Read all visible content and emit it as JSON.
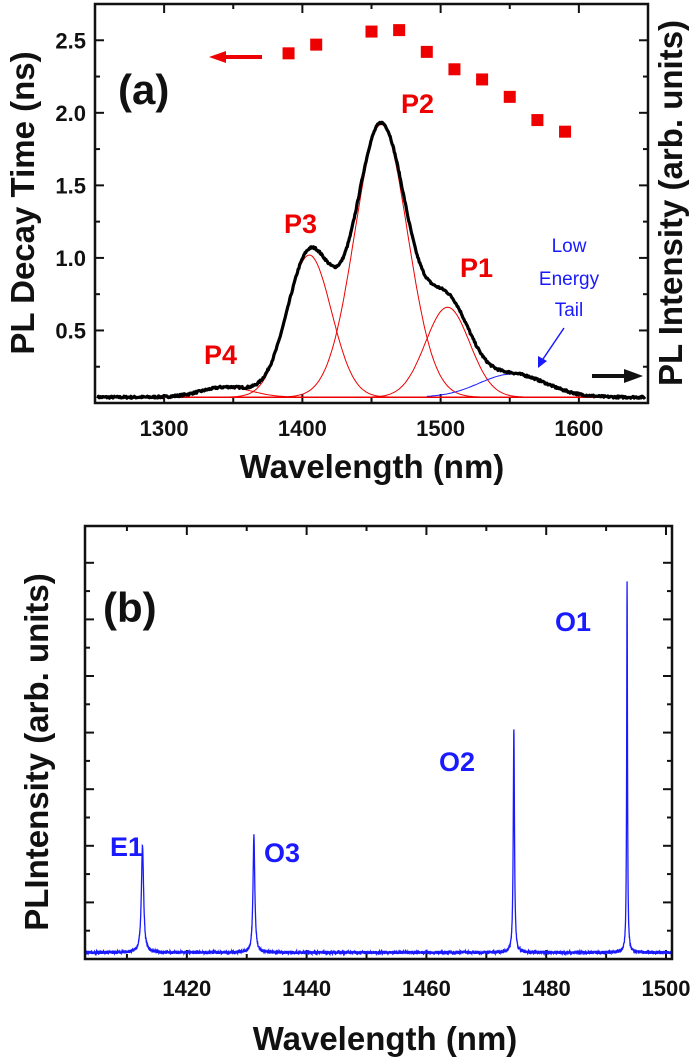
{
  "chart_data": [
    {
      "panel": "(a)",
      "type": "line",
      "xlabel": "Wavelength (nm)",
      "ylabel_left": "PL Decay Time (ns)",
      "ylabel_right": "PL Intensity (arb. units)",
      "xlim": [
        1250,
        1650
      ],
      "ylim": [
        0,
        2.75
      ],
      "xticks": [
        1300,
        1400,
        1500,
        1600
      ],
      "yticks": [
        "0.5",
        "1.0",
        "1.5",
        "2.0",
        "2.5"
      ],
      "grid": false,
      "colors": {
        "decay": "#ee0000",
        "spectrum": "#000000",
        "fit": "#ee0000",
        "tail": "#1a1aff"
      },
      "decay_time": {
        "type": "scatter",
        "x": [
          1390,
          1410,
          1450,
          1470,
          1490,
          1510,
          1530,
          1550,
          1570,
          1590
        ],
        "y": [
          2.41,
          2.47,
          2.56,
          2.57,
          2.42,
          2.3,
          2.23,
          2.11,
          1.95,
          1.87
        ]
      },
      "spectrum_baseline": 0.04,
      "fit_components": [
        {
          "label": "P4",
          "center": 1345,
          "amplitude": 0.07,
          "sigma": 18
        },
        {
          "label": "P3",
          "center": 1405,
          "amplitude": 0.98,
          "sigma": 16
        },
        {
          "label": "P2",
          "center": 1457,
          "amplitude": 1.88,
          "sigma": 19
        },
        {
          "label": "P1",
          "center": 1505,
          "amplitude": 0.62,
          "sigma": 16
        },
        {
          "label": "Low Energy Tail",
          "center": 1552,
          "amplitude": 0.16,
          "sigma": 24
        }
      ],
      "annotations": {
        "panel_label": "(a)",
        "p1": "P1",
        "p2": "P2",
        "p3": "P3",
        "p4": "P4",
        "tail_line1": "Low",
        "tail_line2": "Energy",
        "tail_line3": "Tail"
      }
    },
    {
      "panel": "(b)",
      "type": "line",
      "xlabel": "Wavelength (nm)",
      "ylabel": "PLIntensity (arb. units)",
      "xlim": [
        1403,
        1501
      ],
      "ylim": [
        0,
        15.3
      ],
      "xticks": [
        1420,
        1440,
        1460,
        1480,
        1500
      ],
      "grid": false,
      "color": "#1a1aff",
      "baseline": 0.23,
      "peaks": [
        {
          "label": "E1",
          "wavelength": 1412.6,
          "height": 4.0,
          "hwhm": 0.22
        },
        {
          "label": "O3",
          "wavelength": 1431.2,
          "height": 4.35,
          "hwhm": 0.18
        },
        {
          "label": "O2",
          "wavelength": 1474.6,
          "height": 8.1,
          "hwhm": 0.12
        },
        {
          "label": "O1",
          "wavelength": 1493.5,
          "height": 13.3,
          "hwhm": 0.08
        }
      ],
      "annotations": {
        "panel_label": "(b)",
        "e1": "E1",
        "o3": "O3",
        "o2": "O2",
        "o1": "O1"
      }
    }
  ]
}
